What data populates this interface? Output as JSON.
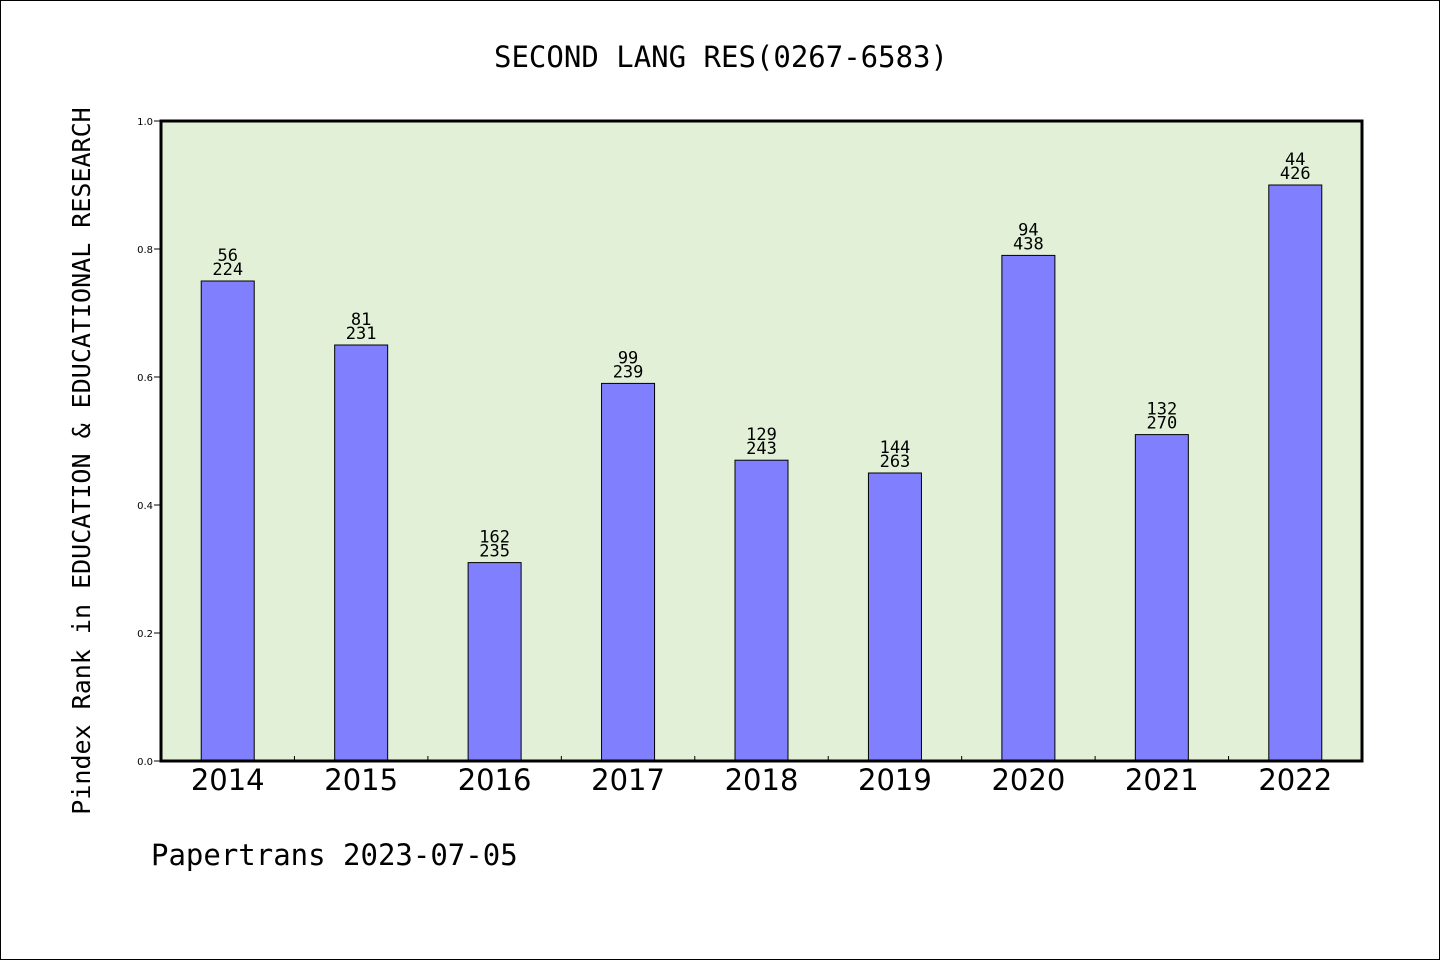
{
  "chart_data": {
    "type": "bar",
    "title": "SECOND LANG RES(0267-6583)",
    "xlabel": "",
    "ylabel": "Pindex Rank in EDUCATION & EDUCATIONAL RESEARCH",
    "ylim": [
      0.0,
      1.0
    ],
    "yticks": [
      "0.0",
      "0.2",
      "0.4",
      "0.6",
      "0.8",
      "1.0"
    ],
    "ytick_values": [
      0.0,
      0.2,
      0.4,
      0.6,
      0.8,
      1.0
    ],
    "categories": [
      "2014",
      "2015",
      "2016",
      "2017",
      "2018",
      "2019",
      "2020",
      "2021",
      "2022"
    ],
    "values": [
      0.75,
      0.65,
      0.31,
      0.59,
      0.47,
      0.45,
      0.79,
      0.51,
      0.9
    ],
    "rank_labels": [
      "56",
      "81",
      "162",
      "99",
      "129",
      "144",
      "94",
      "132",
      "44"
    ],
    "total_labels": [
      "224",
      "231",
      "235",
      "239",
      "243",
      "263",
      "438",
      "270",
      "426"
    ],
    "grid": false,
    "legend": "none",
    "colors": {
      "bar_fill": "#8080ff",
      "bar_stroke": "#000000",
      "plot_background": "#e2f0d8",
      "axis": "#000000"
    }
  },
  "footer": {
    "text": "Papertrans 2023-07-05"
  }
}
